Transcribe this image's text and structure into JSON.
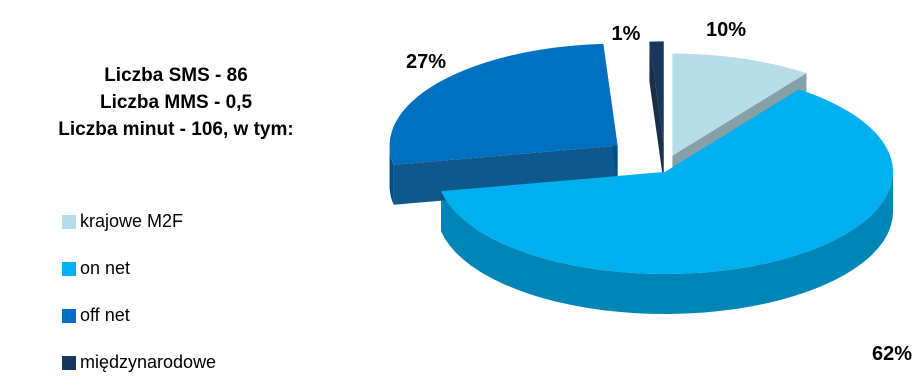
{
  "headline": {
    "line1": "Liczba SMS - 86",
    "line2": "Liczba MMS - 0,5",
    "line3": "Liczba minut - 106, w tym:"
  },
  "chart_data": {
    "type": "pie",
    "title": "",
    "categories": [
      "krajowe M2F",
      "on net",
      "off net",
      "międzynarodowe"
    ],
    "values": [
      10,
      62,
      27,
      1
    ],
    "labels": [
      "10%",
      "62%",
      "27%",
      "1%"
    ],
    "unit": "%",
    "legend_placement": "left",
    "three_d": true,
    "exploded": true,
    "colors": [
      "#b7dde8",
      "#00b0f0",
      "#0070c0",
      "#17375e"
    ],
    "side_colors": [
      "#7f9ba3",
      "#0086b6",
      "#004f87",
      "#0e2540"
    ]
  }
}
